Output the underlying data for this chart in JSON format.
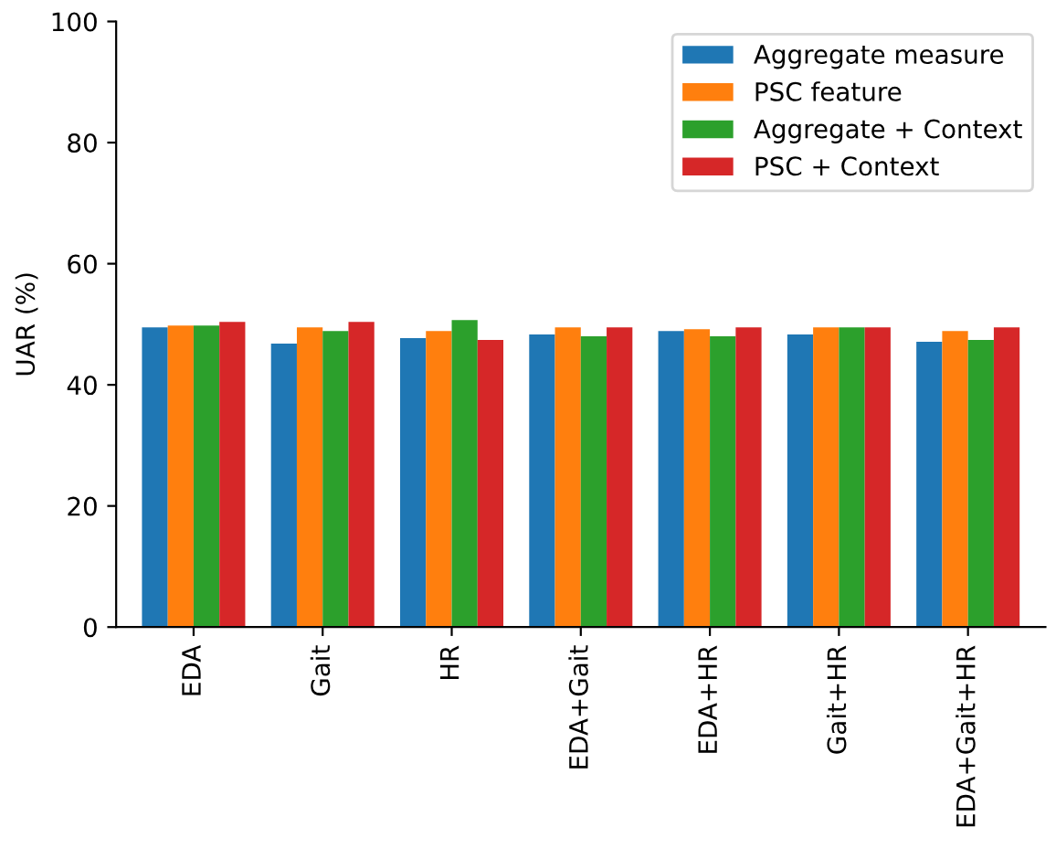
{
  "chart_data": {
    "type": "bar",
    "ylabel": "UAR (%)",
    "categories": [
      "EDA",
      "Gait",
      "HR",
      "EDA+Gait",
      "EDA+HR",
      "Gait+HR",
      "EDA+Gait+HR"
    ],
    "series": [
      {
        "name": "Aggregate measure",
        "color": "#1f77b4",
        "values": [
          49.5,
          46.8,
          47.7,
          48.3,
          48.9,
          48.3,
          47.1
        ]
      },
      {
        "name": "PSC feature",
        "color": "#ff7f0e",
        "values": [
          49.8,
          49.5,
          48.9,
          49.5,
          49.2,
          49.5,
          48.9
        ]
      },
      {
        "name": "Aggregate + Context",
        "color": "#2ca02c",
        "values": [
          49.8,
          48.9,
          50.7,
          48.0,
          48.0,
          49.5,
          47.4
        ]
      },
      {
        "name": "PSC + Context",
        "color": "#d62728",
        "values": [
          50.4,
          50.4,
          47.4,
          49.5,
          49.5,
          49.5,
          49.5
        ]
      }
    ],
    "ylim": [
      0,
      100
    ],
    "yticks": [
      0,
      20,
      40,
      60,
      80,
      100
    ],
    "grid": false,
    "legend": "top right"
  }
}
